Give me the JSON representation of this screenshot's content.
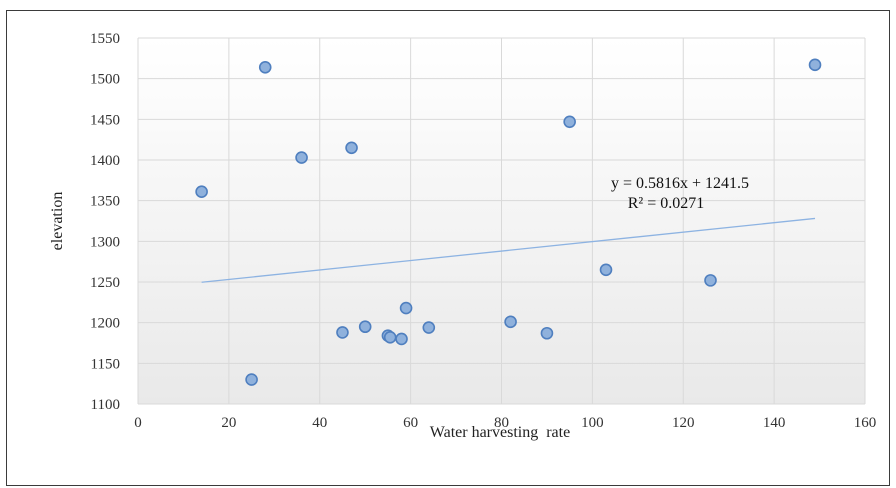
{
  "chart_data": {
    "type": "scatter",
    "title": "",
    "xlabel": "Water harvesting  rate",
    "ylabel": "elevation",
    "xlim": [
      0,
      160
    ],
    "ylim": [
      1100,
      1550
    ],
    "xticks": [
      0,
      20,
      40,
      60,
      80,
      100,
      120,
      140,
      160
    ],
    "yticks": [
      1100,
      1150,
      1200,
      1250,
      1300,
      1350,
      1400,
      1450,
      1500,
      1550
    ],
    "grid": true,
    "legend": "none",
    "colors": {
      "point_fill": "#8fb1dc",
      "point_stroke": "#4f7fbf",
      "trendline": "#8db3e2",
      "grid": "#d9d9d9"
    },
    "series": [
      {
        "points": [
          {
            "x": 14,
            "y": 1361
          },
          {
            "x": 25,
            "y": 1130
          },
          {
            "x": 28,
            "y": 1514
          },
          {
            "x": 36,
            "y": 1403
          },
          {
            "x": 45,
            "y": 1188
          },
          {
            "x": 47,
            "y": 1415
          },
          {
            "x": 50,
            "y": 1195
          },
          {
            "x": 55,
            "y": 1184
          },
          {
            "x": 55.5,
            "y": 1182
          },
          {
            "x": 58,
            "y": 1180
          },
          {
            "x": 59,
            "y": 1218
          },
          {
            "x": 64,
            "y": 1194
          },
          {
            "x": 82,
            "y": 1201
          },
          {
            "x": 90,
            "y": 1187
          },
          {
            "x": 95,
            "y": 1447
          },
          {
            "x": 103,
            "y": 1265
          },
          {
            "x": 126,
            "y": 1252
          },
          {
            "x": 149,
            "y": 1517
          }
        ]
      }
    ],
    "trendline": {
      "slope": 0.5816,
      "intercept": 1241.5,
      "x_range": [
        14,
        149
      ],
      "equation_label": "y = 0.5816x  + 1241.5",
      "r2_label": "R² = 0.0271"
    }
  }
}
